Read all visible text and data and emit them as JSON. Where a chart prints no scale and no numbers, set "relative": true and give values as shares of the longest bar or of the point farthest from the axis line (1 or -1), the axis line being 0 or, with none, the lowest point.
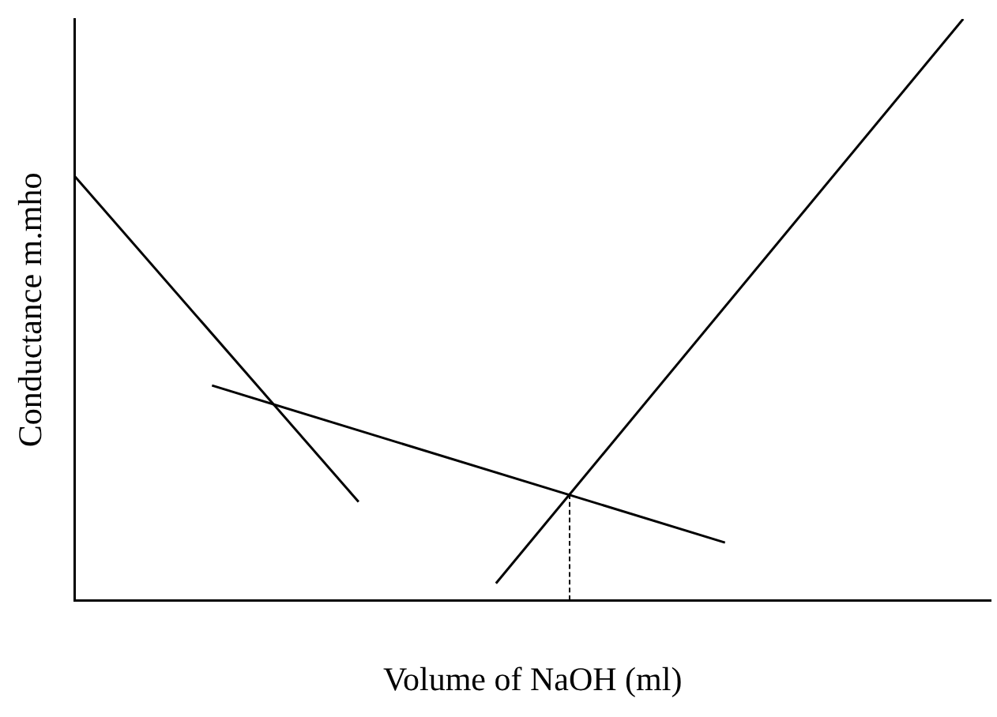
{
  "chart_data": {
    "type": "line",
    "xlabel": "Volume of NaOH (ml)",
    "ylabel": "Conductance m.mho",
    "relative": true,
    "grid": false,
    "legend": false,
    "marker": "none",
    "categories": [
      null,
      null,
      null,
      null,
      null,
      null,
      null,
      null,
      null,
      null,
      null,
      null,
      null,
      null,
      null,
      null,
      null,
      null,
      null,
      null,
      null,
      null,
      null,
      null,
      null,
      null,
      null,
      null,
      null,
      null,
      null,
      null,
      null,
      null,
      null,
      null,
      null,
      null,
      null,
      null,
      null,
      null,
      null,
      null,
      null,
      null,
      null,
      null,
      null,
      null,
      null,
      null,
      null,
      null,
      null,
      null,
      null,
      null,
      null,
      null,
      null,
      null,
      null,
      null,
      null,
      null,
      null,
      null,
      null,
      null,
      null,
      null,
      null,
      null,
      null,
      null,
      null,
      null,
      null,
      null,
      null,
      null,
      null,
      null,
      null,
      null,
      null,
      null,
      null,
      null,
      null,
      null,
      null,
      null,
      null,
      null,
      null,
      null,
      null,
      null,
      null
    ],
    "series": [
      {
        "color": "#000000",
        "values": [
          0.73,
          null,
          null,
          null,
          null,
          null,
          null,
          null,
          null,
          null,
          null,
          null,
          null,
          null,
          null,
          null,
          null,
          null,
          null,
          null,
          null,
          null,
          null,
          null,
          null,
          null,
          null,
          null,
          null,
          null,
          null,
          0.17,
          null,
          null,
          null,
          null,
          null,
          null,
          null,
          null,
          null,
          null,
          null,
          null,
          null,
          null,
          null,
          null,
          null,
          null,
          null,
          null,
          null,
          null,
          null,
          null,
          null,
          null,
          null,
          null,
          null,
          null,
          null,
          null,
          null,
          null,
          null,
          null,
          null,
          null,
          null,
          null,
          null,
          null,
          null,
          null,
          null,
          null,
          null,
          null,
          null,
          null,
          null,
          null,
          null,
          null,
          null,
          null,
          null,
          null,
          null,
          null,
          null,
          null,
          null,
          null,
          null,
          null,
          null,
          null,
          null
        ]
      },
      {
        "color": "#000000",
        "values": [
          null,
          null,
          null,
          null,
          null,
          null,
          null,
          null,
          null,
          null,
          null,
          null,
          null,
          null,
          null,
          0.37,
          null,
          null,
          null,
          null,
          null,
          null,
          null,
          null,
          null,
          null,
          null,
          null,
          null,
          null,
          null,
          null,
          null,
          null,
          null,
          null,
          null,
          null,
          null,
          null,
          null,
          null,
          null,
          null,
          null,
          null,
          null,
          null,
          null,
          null,
          null,
          null,
          null,
          null,
          null,
          null,
          null,
          null,
          null,
          null,
          null,
          null,
          null,
          null,
          null,
          null,
          null,
          null,
          null,
          null,
          null,
          0.1,
          null,
          null,
          null,
          null,
          null,
          null,
          null,
          null,
          null,
          null,
          null,
          null,
          null,
          null,
          null,
          null,
          null,
          null,
          null,
          null,
          null,
          null,
          null,
          null,
          null,
          null,
          null,
          null,
          null
        ]
      },
      {
        "color": "#000000",
        "values": [
          null,
          null,
          null,
          null,
          null,
          null,
          null,
          null,
          null,
          null,
          null,
          null,
          null,
          null,
          null,
          null,
          null,
          null,
          null,
          null,
          null,
          null,
          null,
          null,
          null,
          null,
          null,
          null,
          null,
          null,
          null,
          null,
          null,
          null,
          null,
          null,
          null,
          null,
          null,
          null,
          null,
          null,
          null,
          null,
          null,
          null,
          0.03,
          null,
          null,
          null,
          null,
          null,
          null,
          null,
          null,
          null,
          null,
          null,
          null,
          null,
          null,
          null,
          null,
          null,
          null,
          null,
          null,
          null,
          null,
          null,
          null,
          null,
          null,
          null,
          null,
          null,
          null,
          null,
          null,
          null,
          null,
          null,
          null,
          null,
          null,
          null,
          null,
          null,
          null,
          null,
          null,
          null,
          null,
          null,
          null,
          null,
          null,
          1,
          null,
          null,
          null
        ]
      }
    ]
  }
}
